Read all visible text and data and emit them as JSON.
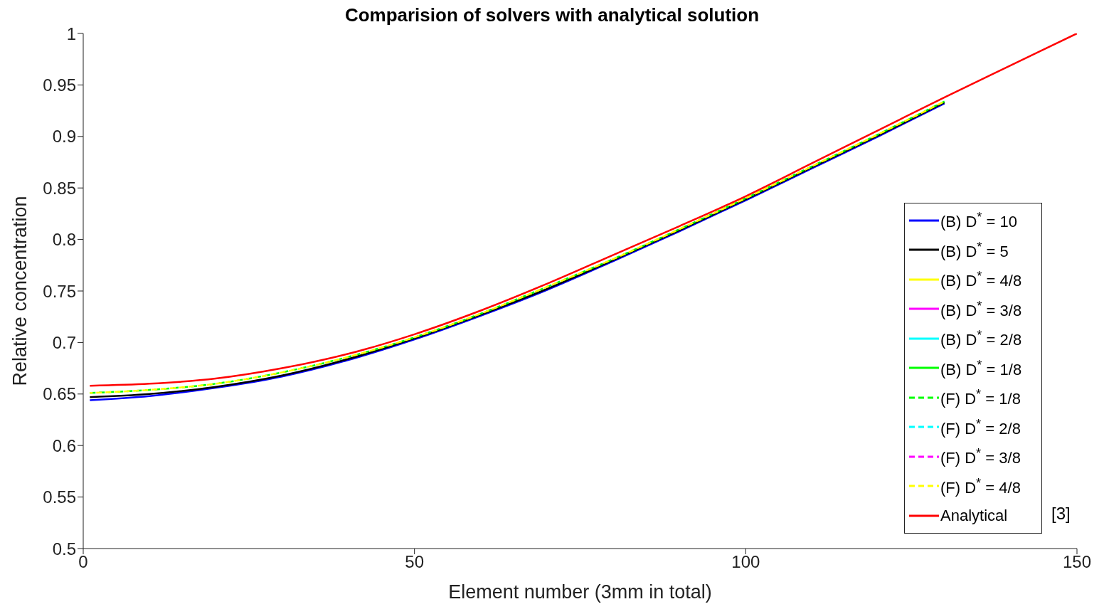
{
  "chart_data": {
    "type": "line",
    "title": "Comparision of solvers with analytical solution",
    "xlabel": "Element number (3mm in total)",
    "ylabel": "Relative concentration",
    "x": [
      1,
      10,
      20,
      30,
      40,
      50,
      60,
      70,
      80,
      90,
      100,
      110,
      120,
      130,
      140,
      150
    ],
    "series": [
      {
        "name": "(B) D$^{*}$ = 10",
        "color": "#0000ff",
        "line_style": "solid",
        "values": [
          0.644,
          0.648,
          0.656,
          0.667,
          0.683,
          0.703,
          0.726,
          0.751,
          0.779,
          0.808,
          0.838,
          0.869,
          0.9,
          0.932,
          null,
          null
        ]
      },
      {
        "name": "(B) D$^{*}$ = 5",
        "color": "#000000",
        "line_style": "solid",
        "values": [
          0.647,
          0.65,
          0.657,
          0.668,
          0.684,
          0.704,
          0.727,
          0.752,
          0.78,
          0.809,
          0.839,
          0.87,
          0.901,
          0.933,
          null,
          null
        ]
      },
      {
        "name": "(B) D$^{*}$ = 4/8",
        "color": "#ffff00",
        "line_style": "solid",
        "values": [
          null,
          null,
          null,
          null,
          null,
          null,
          null,
          null,
          null,
          null,
          null,
          null,
          null,
          null,
          null,
          null
        ]
      },
      {
        "name": "(B) D$^{*}$ = 3/8",
        "color": "#ff00ff",
        "line_style": "solid",
        "values": [
          null,
          null,
          null,
          null,
          null,
          null,
          null,
          null,
          null,
          null,
          null,
          null,
          null,
          null,
          null,
          null
        ]
      },
      {
        "name": "(B) D$^{*}$ = 2/8",
        "color": "#00ffff",
        "line_style": "solid",
        "values": [
          null,
          null,
          null,
          null,
          null,
          null,
          null,
          null,
          null,
          null,
          null,
          null,
          null,
          null,
          null,
          null
        ]
      },
      {
        "name": "(B) D$^{*}$ = 1/8",
        "color": "#00ff00",
        "line_style": "solid",
        "values": [
          null,
          null,
          null,
          null,
          null,
          null,
          null,
          null,
          null,
          null,
          null,
          null,
          null,
          null,
          null,
          null
        ]
      },
      {
        "name": "(F) D$^{*}$ = 1/8",
        "color": "#00ff00",
        "line_style": "dashed",
        "values": [
          0.651,
          0.654,
          0.66,
          0.671,
          0.686,
          0.705,
          0.728,
          0.754,
          0.781,
          0.81,
          0.84,
          0.871,
          0.902,
          0.934,
          null,
          null
        ]
      },
      {
        "name": "(F) D$^{*}$ = 2/8",
        "color": "#00ffff",
        "line_style": "dashed",
        "values": [
          null,
          null,
          null,
          null,
          null,
          null,
          null,
          null,
          null,
          null,
          null,
          null,
          null,
          null,
          null,
          null
        ]
      },
      {
        "name": "(F) D$^{*}$ = 3/8",
        "color": "#ff00ff",
        "line_style": "dashed",
        "values": [
          null,
          null,
          null,
          null,
          null,
          null,
          null,
          null,
          null,
          null,
          null,
          null,
          null,
          null,
          null,
          null
        ]
      },
      {
        "name": "(F) D$^{*}$ = 4/8",
        "color": "#ffff00",
        "line_style": "dashed",
        "values": [
          0.651,
          0.654,
          0.66,
          0.671,
          0.686,
          0.705,
          0.728,
          0.754,
          0.781,
          0.81,
          0.84,
          0.871,
          0.902,
          0.934,
          null,
          null
        ]
      },
      {
        "name": "Analytical",
        "color": "#ff0000",
        "line_style": "solid",
        "values": [
          0.658,
          0.66,
          0.665,
          0.675,
          0.689,
          0.708,
          0.731,
          0.757,
          0.785,
          0.813,
          0.842,
          0.874,
          0.906,
          0.938,
          0.969,
          1.0
        ]
      }
    ],
    "xlim": [
      0,
      150
    ],
    "xticks": [
      0,
      50,
      100,
      150
    ],
    "ylim": [
      0.5,
      1
    ],
    "yticks": [
      0.5,
      0.55,
      0.6,
      0.65,
      0.7,
      0.75,
      0.8,
      0.85,
      0.9,
      0.95,
      1
    ],
    "grid": false,
    "legend": "bottom right",
    "marker": "none",
    "annotations": [
      "[3]"
    ]
  }
}
